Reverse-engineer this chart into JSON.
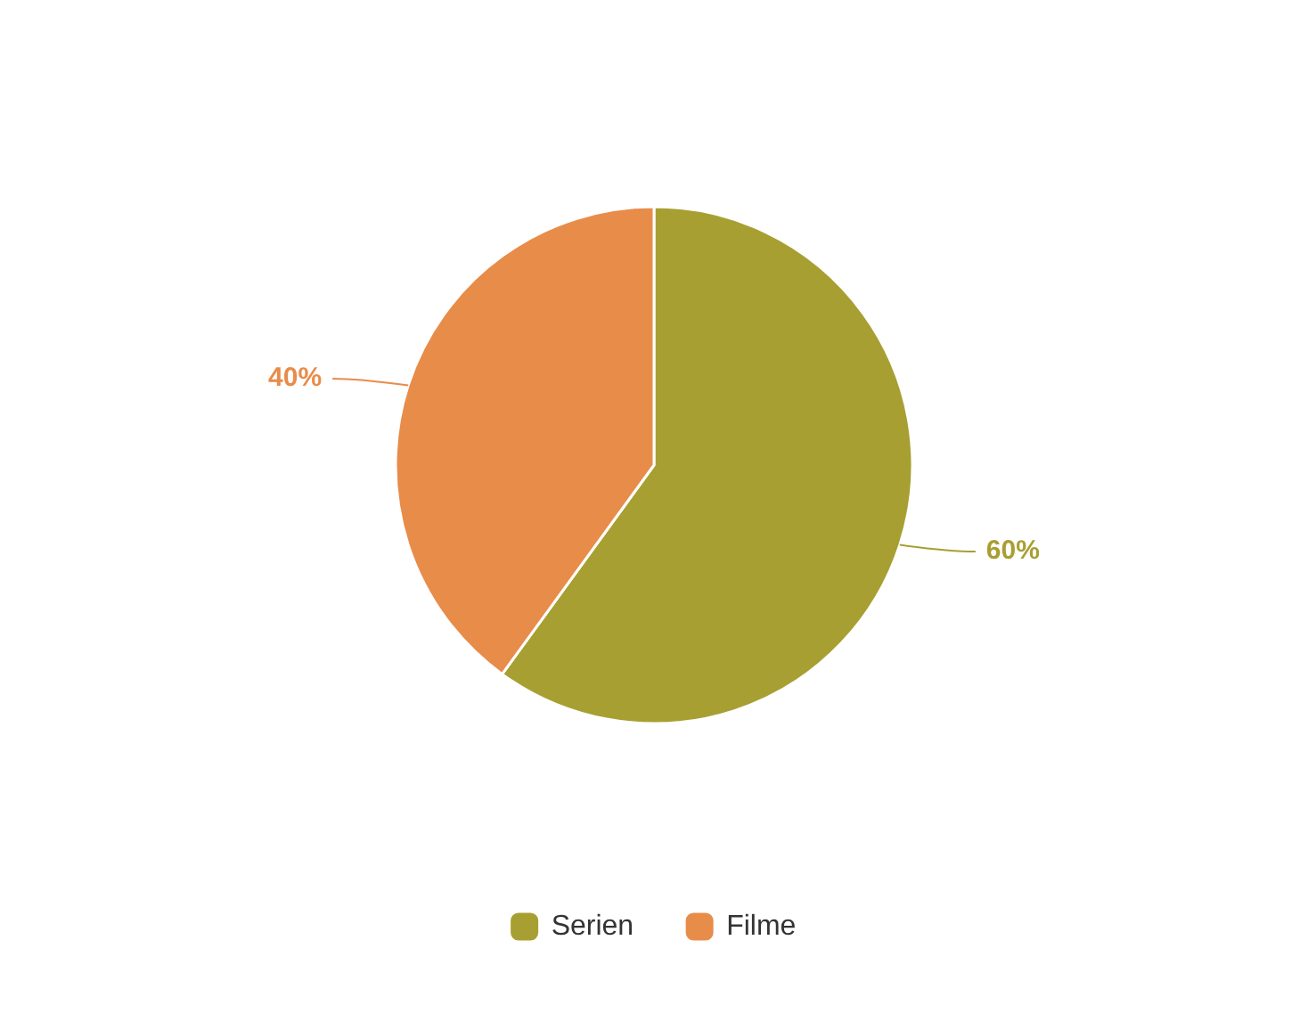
{
  "chart_data": {
    "type": "pie",
    "categories": [
      "Serien",
      "Filme"
    ],
    "values": [
      60,
      40
    ],
    "colors": [
      "#a89f32",
      "#e88c4a"
    ],
    "value_labels": [
      "60%",
      "40%"
    ],
    "legend": "bottom"
  }
}
